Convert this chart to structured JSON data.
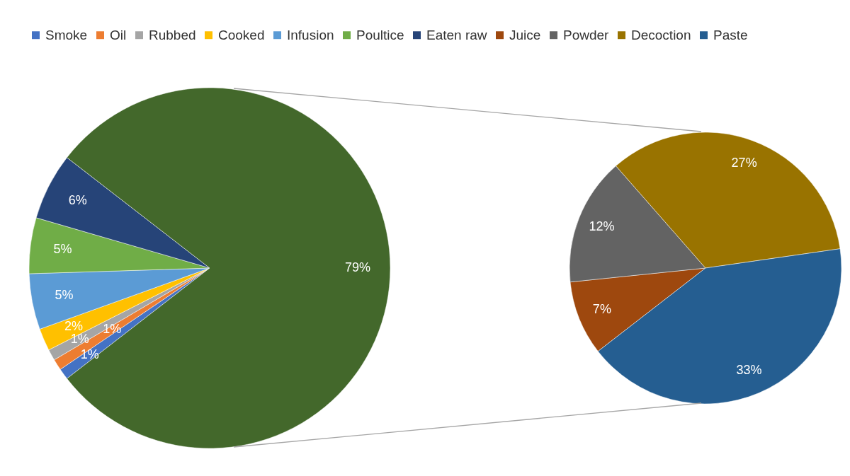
{
  "chart_data": [
    {
      "type": "pie",
      "categories": [
        "Smoke",
        "Oil",
        "Rubbed",
        "Cooked",
        "Infusion",
        "Poultice",
        "Eaten raw",
        null
      ],
      "values": [
        1,
        1,
        1,
        2,
        5,
        5,
        6,
        79
      ],
      "colors": [
        "#4472c4",
        "#ed7d31",
        "#a5a5a5",
        "#ffc000",
        "#5b9bd5",
        "#70ad47",
        "#264478",
        "#43682b"
      ],
      "value_labels": [
        "1%",
        "1%",
        "1%",
        "2%",
        "5%",
        "5%",
        "6%",
        "79%"
      ],
      "legend": "top"
    },
    {
      "type": "pie",
      "categories": [
        "Juice",
        "Powder",
        "Decoction",
        "Paste"
      ],
      "values": [
        7,
        12,
        27,
        33
      ],
      "colors": [
        "#9e480e",
        "#636363",
        "#997300",
        "#255e91"
      ],
      "value_labels": [
        "7%",
        "12%",
        "27%",
        "33%"
      ],
      "legend": "top"
    }
  ]
}
